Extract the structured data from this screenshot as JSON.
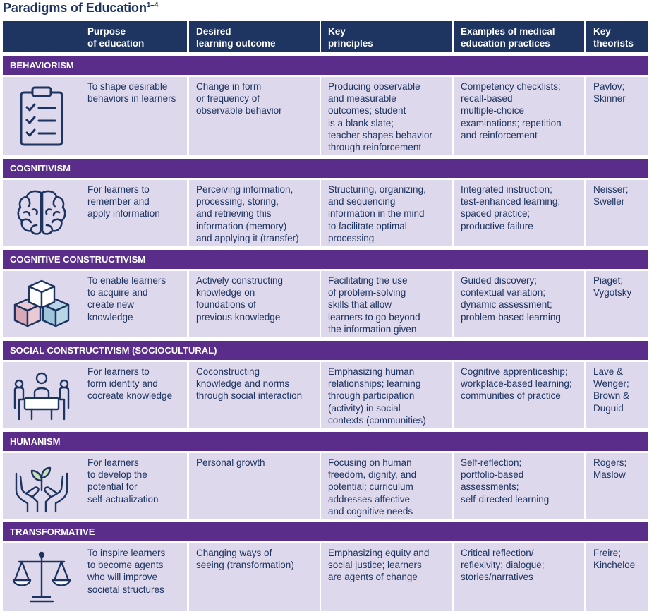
{
  "title": "Paradigms of Education",
  "title_sup": "1–4",
  "colors": {
    "header": "#1e3461",
    "band": "#5a2d8a",
    "cell": "#ded8ec",
    "text": "#1d3461"
  },
  "columns": [
    "Purpose\nof education",
    "Desired\nlearning outcome",
    "Key\nprinciples",
    "Examples of medical\neducation practices",
    "Key\ntheorists"
  ],
  "rows": [
    {
      "paradigm": "BEHAVIORISM",
      "icon": "clipboard-checklist-icon",
      "purpose": "To shape desirable\nbehaviors in learners",
      "outcome": "Change in form\nor frequency of\nobservable behavior",
      "principles": "Producing observable\nand measurable\noutcomes; student\nis a blank slate;\nteacher shapes behavior\nthrough reinforcement",
      "practices": "Competency checklists;\nrecall-based\nmultiple-choice\nexaminations; repetition\nand reinforcement",
      "theorists": "Pavlov;\nSkinner"
    },
    {
      "paradigm": "COGNITIVISM",
      "icon": "brain-icon",
      "purpose": "For learners to\nremember and\napply information",
      "outcome": "Perceiving information,\nprocessing, storing,\nand retrieving this\ninformation (memory)\nand applying it (transfer)",
      "principles": "Structuring, organizing,\nand sequencing\ninformation in the mind\nto facilitate optimal\nprocessing",
      "practices": "Integrated instruction;\ntest-enhanced learning;\nspaced practice;\nproductive failure",
      "theorists": "Neisser;\nSweller"
    },
    {
      "paradigm": "COGNITIVE CONSTRUCTIVISM",
      "icon": "stacked-cubes-icon",
      "purpose": "To enable learners\nto acquire and\ncreate new\nknowledge",
      "outcome": "Actively constructing\nknowledge on\nfoundations of\nprevious knowledge",
      "principles": "Facilitating the use\nof problem-solving\nskills that allow\nlearners to go beyond\nthe information given",
      "practices": "Guided discovery;\ncontextual variation;\ndynamic assessment;\nproblem-based learning",
      "theorists": "Piaget;\nVygotsky"
    },
    {
      "paradigm": "SOCIAL CONSTRUCTIVISM (SOCIOCULTURAL)",
      "icon": "group-meeting-icon",
      "purpose": "For learners to\nform identity and\ncocreate knowledge",
      "outcome": "Coconstructing\nknowledge and norms\nthrough social interaction",
      "principles": "Emphasizing human\nrelationships; learning\nthrough participation\n(activity) in social\ncontexts (communities)",
      "practices": "Cognitive apprenticeship;\nworkplace-based learning;\ncommunities of practice",
      "theorists": "Lave &\nWenger;\nBrown &\nDuguid"
    },
    {
      "paradigm": "HUMANISM",
      "icon": "hands-sprout-icon",
      "purpose": "For learners\nto develop the\npotential for\nself-actualization",
      "outcome": "Personal growth",
      "principles": "Focusing on human\nfreedom, dignity, and\npotential; curriculum\naddresses affective\nand cognitive needs",
      "practices": "Self-reflection;\nportfolio-based\nassessments;\nself-directed learning",
      "theorists": "Rogers;\nMaslow"
    },
    {
      "paradigm": "TRANSFORMATIVE",
      "icon": "scales-of-justice-icon",
      "purpose": "To inspire learners\nto become agents\nwho will improve\nsocietal structures",
      "outcome": "Changing ways of\nseeing (transformation)",
      "principles": "Emphasizing equity and\nsocial justice; learners\nare agents of change",
      "practices": "Critical reflection/\nreflexivity; dialogue;\nstories/narratives",
      "theorists": "Freire;\nKincheloe"
    }
  ]
}
